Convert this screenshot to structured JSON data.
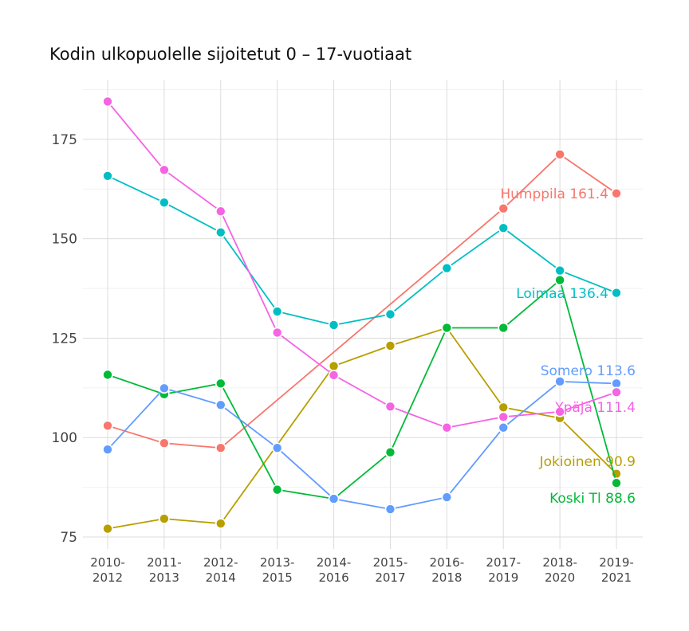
{
  "chart_data": {
    "type": "line",
    "title": "Kodin ulkopuolelle sijoitetut 0 – 17-vuotiaat",
    "xlabel": "",
    "ylabel": "",
    "x": [
      "2010-2012",
      "2011-2013",
      "2012-2014",
      "2013-2015",
      "2014-2016",
      "2015-2017",
      "2016-2018",
      "2017-2019",
      "2018-2020",
      "2019-2021"
    ],
    "ylim": [
      72,
      190
    ],
    "yticks": [
      75,
      100,
      125,
      150,
      175
    ],
    "grid": true,
    "legend": "none",
    "series": [
      {
        "name": "Humppila",
        "color": "#F8766D",
        "end_label": "Humppila 161.4",
        "values": [
          103,
          98.6,
          97.4,
          null,
          null,
          null,
          null,
          157.6,
          171.2,
          161.4
        ]
      },
      {
        "name": "Jokioinen",
        "color": "#B79F00",
        "end_label": "Jokioinen 90.9",
        "values": [
          77.1,
          79.6,
          78.4,
          null,
          118,
          123.1,
          127.6,
          107.6,
          104.9,
          90.9
        ]
      },
      {
        "name": "Koski Tl",
        "color": "#00BA38",
        "end_label": "Koski Tl 88.6",
        "values": [
          115.8,
          110.9,
          113.6,
          86.9,
          84.6,
          96.3,
          127.6,
          127.6,
          139.6,
          88.6
        ]
      },
      {
        "name": "Loimaa",
        "color": "#00BFC4",
        "end_label": "Loimaa 136.4",
        "values": [
          165.8,
          159.1,
          151.6,
          131.7,
          128.3,
          131,
          142.6,
          152.7,
          142,
          136.4
        ]
      },
      {
        "name": "Somero",
        "color": "#619CFF",
        "end_label": "Somero 113.6",
        "values": [
          97,
          112.4,
          108.2,
          97.4,
          84.6,
          82,
          85,
          102.5,
          114.1,
          113.6
        ]
      },
      {
        "name": "Ypäjä",
        "color": "#F564E3",
        "end_label": "Ypäjä 111.4",
        "values": [
          184.5,
          167.3,
          156.9,
          126.4,
          115.7,
          107.8,
          102.5,
          105.2,
          106.5,
          111.4
        ]
      }
    ]
  }
}
